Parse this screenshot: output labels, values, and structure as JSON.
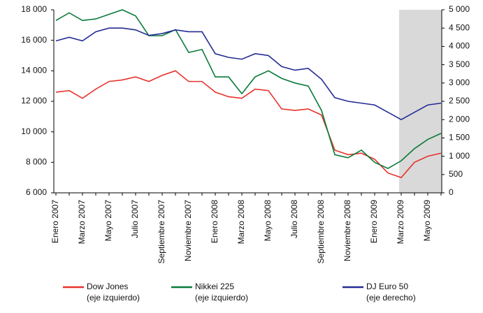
{
  "chart_data": {
    "type": "line",
    "categories": [
      "Enero 2007",
      null,
      "Marzo 2007",
      null,
      "Mayo 2007",
      null,
      "Julio 2007",
      null,
      "Septiembre 2007",
      null,
      "Noviembre 2007",
      null,
      "Enero 2008",
      null,
      "Marzo 2008",
      null,
      "Mayo 2008",
      null,
      "Julio 2008",
      null,
      "Septiembre 2008",
      null,
      "Noviembre 2008",
      null,
      "Enero 2009",
      null,
      "Marzo 2009",
      null,
      "Mayo 2009",
      null
    ],
    "shaded_from": "Marzo 2009",
    "shade_color": "#d9d9d9",
    "series": [
      {
        "name": "Dow Jones",
        "legend_note": "(eje izquierdo)",
        "color": "#e8322c",
        "axis": "y",
        "values": [
          12600,
          12700,
          12200,
          12800,
          13300,
          13400,
          13600,
          13300,
          13700,
          14000,
          13300,
          13300,
          12600,
          12300,
          12200,
          12800,
          12700,
          11500,
          11400,
          11500,
          11100,
          8800,
          8500,
          8600,
          8200,
          7300,
          7000,
          8000,
          8400,
          8600
        ]
      },
      {
        "name": "Nikkei 225",
        "legend_note": "(eje izquierdo)",
        "color": "#0a7a3a",
        "axis": "y",
        "values": [
          17300,
          17800,
          17300,
          17400,
          17700,
          18000,
          17600,
          16300,
          16300,
          16700,
          15200,
          15400,
          13600,
          13600,
          12500,
          13600,
          14000,
          13500,
          13200,
          13000,
          11400,
          8500,
          8300,
          8800,
          8000,
          7600,
          8100,
          8900,
          9500,
          9900
        ]
      },
      {
        "name": "DJ Euro 50",
        "legend_note": "(eje derecho)",
        "color": "#232c94",
        "axis": "y2",
        "values": [
          4150,
          4250,
          4150,
          4400,
          4500,
          4500,
          4450,
          4300,
          4350,
          4450,
          4400,
          4400,
          3800,
          3700,
          3650,
          3800,
          3750,
          3450,
          3350,
          3400,
          3100,
          2600,
          2500,
          2450,
          2400,
          2200,
          2000,
          2200,
          2400,
          2450
        ]
      }
    ],
    "ylim": [
      6000,
      18000
    ],
    "yticks": [
      {
        "value": 6000,
        "label": "6 000"
      },
      {
        "value": 8000,
        "label": "8 000"
      },
      {
        "value": 10000,
        "label": "10 000"
      },
      {
        "value": 12000,
        "label": "12 000"
      },
      {
        "value": 14000,
        "label": "14 000"
      },
      {
        "value": 16000,
        "label": "16 000"
      },
      {
        "value": 18000,
        "label": "18 000"
      }
    ],
    "y2lim": [
      0,
      5000
    ],
    "y2ticks": [
      0,
      500,
      {
        "value": 1000,
        "label": "1 000"
      },
      {
        "value": 1500,
        "label": "1 500"
      },
      {
        "value": 2000,
        "label": "2 000"
      },
      {
        "value": 2500,
        "label": "2 500"
      },
      {
        "value": 3000,
        "label": "3 000"
      },
      {
        "value": 3500,
        "label": "3 500"
      },
      {
        "value": 4000,
        "label": "4 000"
      },
      {
        "value": 4500,
        "label": "4 500"
      },
      {
        "value": 5000,
        "label": "5 000"
      }
    ],
    "grid": false
  }
}
